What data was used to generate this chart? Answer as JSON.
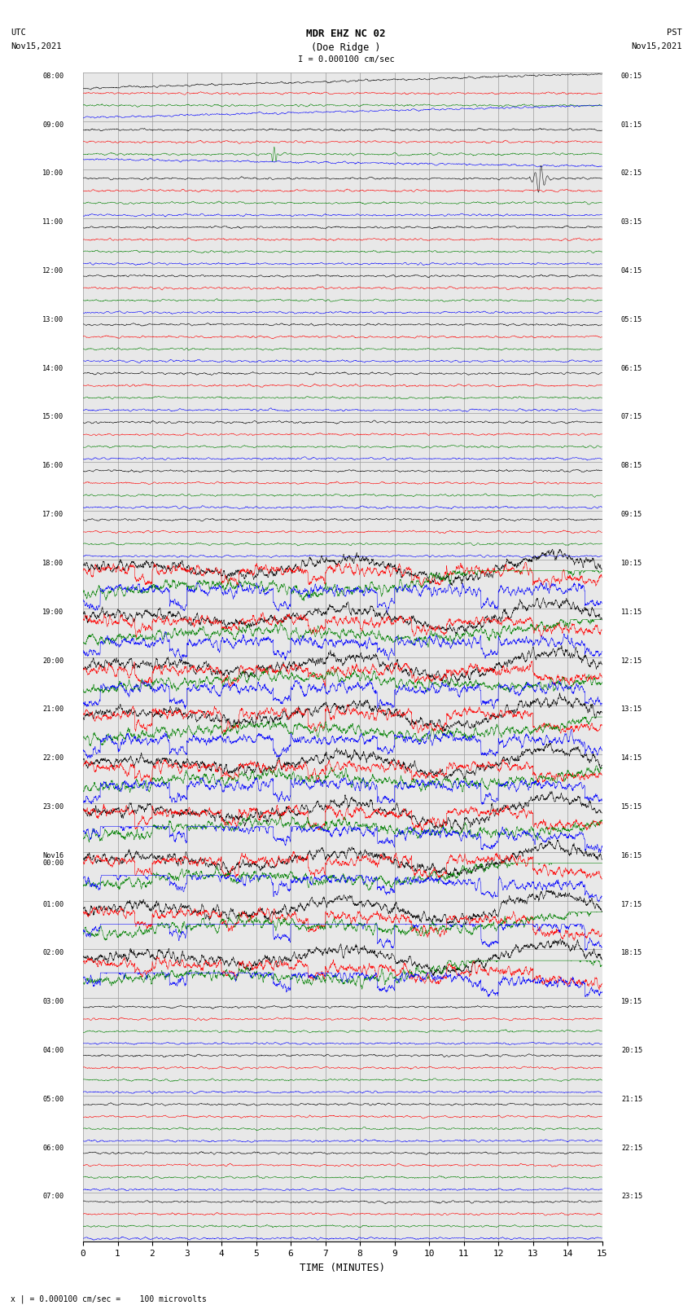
{
  "title_line1": "MDR EHZ NC 02",
  "title_line2": "(Doe Ridge )",
  "scale_text": "I = 0.000100 cm/sec",
  "label_left_top": "UTC",
  "label_left_date": "Nov15,2021",
  "label_right_top": "PST",
  "label_right_date": "Nov15,2021",
  "xlabel": "TIME (MINUTES)",
  "footer_text": "x | = 0.000100 cm/sec =    100 microvolts",
  "utc_times": [
    "08:00",
    "09:00",
    "10:00",
    "11:00",
    "12:00",
    "13:00",
    "14:00",
    "15:00",
    "16:00",
    "17:00",
    "18:00",
    "19:00",
    "20:00",
    "21:00",
    "22:00",
    "23:00",
    "Nov16\n00:00",
    "01:00",
    "02:00",
    "03:00",
    "04:00",
    "05:00",
    "06:00",
    "07:00"
  ],
  "pst_times": [
    "00:15",
    "01:15",
    "02:15",
    "03:15",
    "04:15",
    "05:15",
    "06:15",
    "07:15",
    "08:15",
    "09:15",
    "10:15",
    "11:15",
    "12:15",
    "13:15",
    "14:15",
    "15:15",
    "16:15",
    "17:15",
    "18:15",
    "19:15",
    "20:15",
    "21:15",
    "22:15",
    "23:15"
  ],
  "bg_color": "#e8e8e8",
  "grid_color": "#999999",
  "trace_colors": [
    "black",
    "red",
    "green",
    "blue"
  ],
  "num_rows": 24,
  "xmin": 0,
  "xmax": 15,
  "xticks": [
    0,
    1,
    2,
    3,
    4,
    5,
    6,
    7,
    8,
    9,
    10,
    11,
    12,
    13,
    14,
    15
  ]
}
